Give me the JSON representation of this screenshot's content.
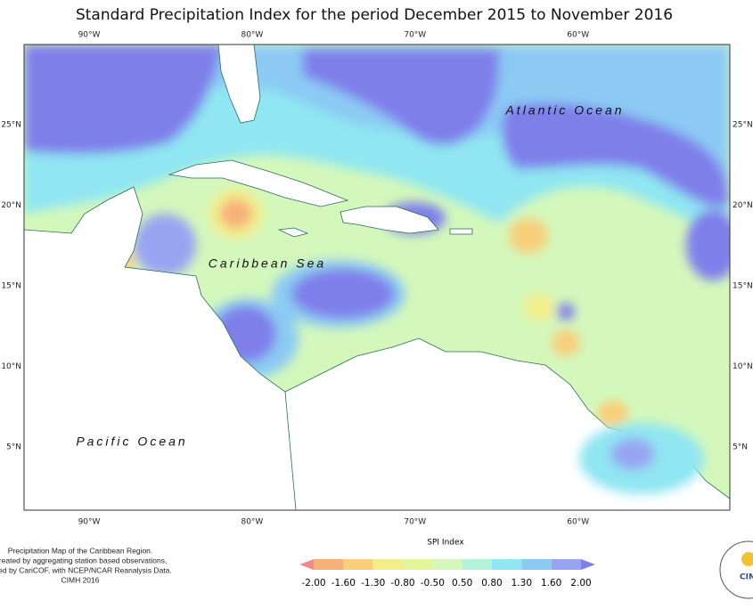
{
  "title": "Standard Precipitation Index for the period December 2015 to November 2016",
  "lon_ticks": [
    "90°W",
    "80°W",
    "70°W",
    "60°W"
  ],
  "lat_ticks": [
    "25°N",
    "20°N",
    "15°N",
    "10°N",
    "5°N"
  ],
  "ocean_labels": [
    "Atlantic Ocean",
    "Caribbean Sea",
    "Pacific Ocean"
  ],
  "legend": {
    "title": "SPI Index",
    "labels": [
      "-2.00",
      "-1.60",
      "-1.30",
      "-0.80",
      "-0.50",
      "0.50",
      "0.80",
      "1.30",
      "1.60",
      "2.00"
    ],
    "colors": [
      "#f28a8a",
      "#f6b07a",
      "#f8cf7a",
      "#f4ee8a",
      "#e4f59a",
      "#d4f8bc",
      "#b4f2dc",
      "#90e6f2",
      "#8ccaf4",
      "#98a4f2",
      "#7f7fea"
    ]
  },
  "credits": [
    "Precipitation Map of the Caribbean Region.",
    "Created by aggregating station based observations,",
    "vided by CariCOF, with NCEP/NCAR Reanalysis Data.",
    "CIMH 2016"
  ],
  "logo_text": "CIM"
}
